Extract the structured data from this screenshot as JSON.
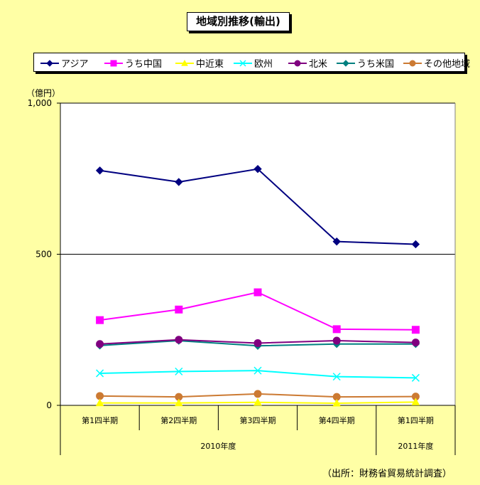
{
  "chart_data": {
    "type": "line",
    "title": "地域別推移(輸出)",
    "ylabel": "（億円）",
    "ylim": [
      0,
      1000
    ],
    "yticks": [
      "0",
      "500",
      "1,000"
    ],
    "ytick_values": [
      0,
      500,
      1000
    ],
    "categories": [
      "第1四半期",
      "第2四半期",
      "第3四半期",
      "第4四半期",
      "第1四半期"
    ],
    "year_groups": [
      {
        "label": "2010年度",
        "span": 4
      },
      {
        "label": "2011年度",
        "span": 1
      }
    ],
    "series": [
      {
        "name": "アジア",
        "color": "#000080",
        "marker": "diamond",
        "values": [
          777,
          739,
          782,
          542,
          533
        ]
      },
      {
        "name": "うち中国",
        "color": "#ff00ff",
        "marker": "square",
        "values": [
          282,
          317,
          374,
          252,
          250
        ]
      },
      {
        "name": "中近東",
        "color": "#ffff00",
        "marker": "triangle",
        "values": [
          8,
          8,
          10,
          7,
          11
        ]
      },
      {
        "name": "欧州",
        "color": "#00ffff",
        "marker": "x",
        "values": [
          106,
          112,
          115,
          95,
          91
        ]
      },
      {
        "name": "北米",
        "color": "#800080",
        "marker": "circle",
        "values": [
          203,
          217,
          206,
          214,
          208
        ]
      },
      {
        "name": "うち米国",
        "color": "#008080",
        "marker": "diamond",
        "values": [
          198,
          214,
          197,
          203,
          203
        ]
      },
      {
        "name": "その他地域",
        "color": "#cc7a33",
        "marker": "circle",
        "values": [
          31,
          28,
          38,
          28,
          29
        ]
      }
    ],
    "grid": "horizontal at 500",
    "legend_position": "top"
  },
  "source_note": "（出所：財務省貿易統計調査）"
}
